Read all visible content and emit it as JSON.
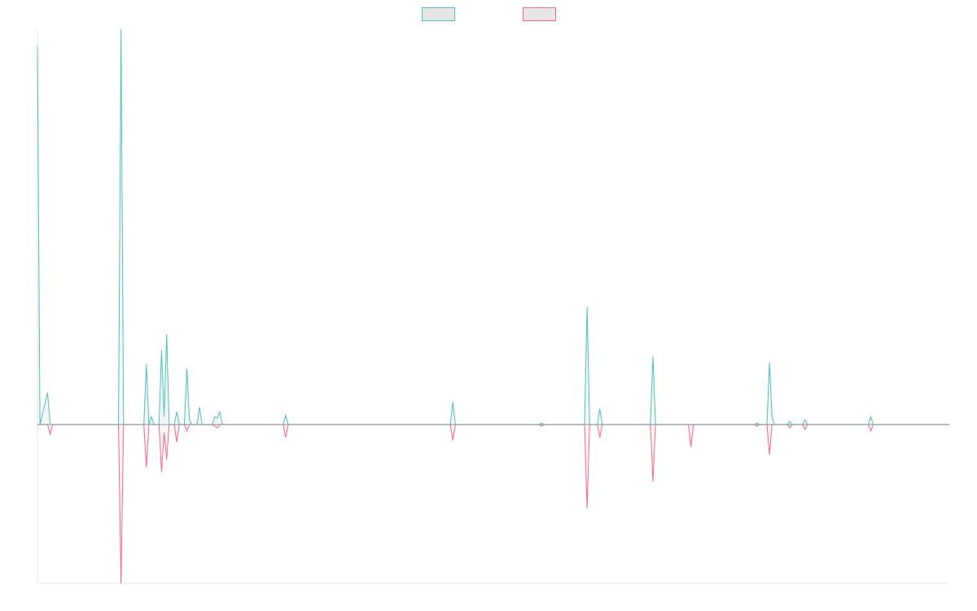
{
  "chart_data": {
    "type": "line",
    "title": "",
    "xlabel": "",
    "ylabel": "",
    "grid": false,
    "legend": "top-center",
    "baseline": 0,
    "ylim": [
      -1.0,
      2.49
    ],
    "xlim": [
      0,
      360
    ],
    "series": [
      {
        "name": "",
        "color": "#4bc0c0",
        "fill": "#e6e6e6",
        "points": [
          [
            0,
            2.38
          ],
          [
            1,
            0
          ],
          [
            4,
            0.2
          ],
          [
            5,
            0
          ],
          [
            32,
            0
          ],
          [
            33,
            2.49
          ],
          [
            34,
            0
          ],
          [
            42,
            0
          ],
          [
            43,
            0.38
          ],
          [
            44,
            0
          ],
          [
            45,
            0.05
          ],
          [
            46,
            0
          ],
          [
            48,
            0
          ],
          [
            49,
            0.47
          ],
          [
            50,
            0.05
          ],
          [
            51,
            0.57
          ],
          [
            52,
            0
          ],
          [
            54,
            0
          ],
          [
            55,
            0.08
          ],
          [
            56,
            0
          ],
          [
            58,
            0
          ],
          [
            59,
            0.35
          ],
          [
            60,
            0.03
          ],
          [
            61,
            0
          ],
          [
            63,
            0
          ],
          [
            64,
            0.11
          ],
          [
            65,
            0
          ],
          [
            69,
            0
          ],
          [
            70,
            0.05
          ],
          [
            71,
            0.04
          ],
          [
            72,
            0.08
          ],
          [
            73,
            0
          ],
          [
            97,
            0
          ],
          [
            98,
            0.06
          ],
          [
            99,
            0
          ],
          [
            163,
            0
          ],
          [
            164,
            0.14
          ],
          [
            165,
            0
          ],
          [
            198,
            0
          ],
          [
            199,
            0.01
          ],
          [
            200,
            0
          ],
          [
            216,
            0
          ],
          [
            217,
            0.74
          ],
          [
            218,
            0
          ],
          [
            221,
            0
          ],
          [
            222,
            0.1
          ],
          [
            223,
            0
          ],
          [
            242,
            0
          ],
          [
            243,
            0.43
          ],
          [
            244,
            0
          ],
          [
            245,
            0
          ],
          [
            246,
            0
          ],
          [
            247,
            0
          ],
          [
            257,
            0
          ],
          [
            258,
            0
          ],
          [
            259,
            0
          ],
          [
            283,
            0
          ],
          [
            284,
            0.01
          ],
          [
            285,
            0
          ],
          [
            288,
            0
          ],
          [
            289,
            0.39
          ],
          [
            290,
            0.05
          ],
          [
            291,
            0
          ],
          [
            296,
            0
          ],
          [
            297,
            0.02
          ],
          [
            298,
            0
          ],
          [
            302,
            0
          ],
          [
            303,
            0.03
          ],
          [
            304,
            0
          ],
          [
            328,
            0
          ],
          [
            329,
            0.05
          ],
          [
            330,
            0
          ],
          [
            360,
            0
          ]
        ]
      },
      {
        "name": "",
        "color": "#ff6384",
        "fill": "#e6e6e6",
        "points": [
          [
            0,
            0
          ],
          [
            4,
            0
          ],
          [
            5,
            -0.06
          ],
          [
            6,
            0
          ],
          [
            32,
            0
          ],
          [
            33,
            -1.0
          ],
          [
            34,
            0
          ],
          [
            42,
            0
          ],
          [
            43,
            -0.27
          ],
          [
            44,
            0
          ],
          [
            48,
            0
          ],
          [
            49,
            -0.3
          ],
          [
            50,
            -0.05
          ],
          [
            51,
            -0.22
          ],
          [
            52,
            0
          ],
          [
            54,
            0
          ],
          [
            55,
            -0.11
          ],
          [
            56,
            0
          ],
          [
            58,
            0
          ],
          [
            59,
            -0.04
          ],
          [
            60,
            0
          ],
          [
            69,
            0
          ],
          [
            70,
            -0.01
          ],
          [
            71,
            -0.02
          ],
          [
            72,
            0
          ],
          [
            97,
            0
          ],
          [
            98,
            -0.08
          ],
          [
            99,
            0
          ],
          [
            163,
            0
          ],
          [
            164,
            -0.1
          ],
          [
            165,
            0
          ],
          [
            198,
            0
          ],
          [
            199,
            -0.01
          ],
          [
            200,
            0
          ],
          [
            216,
            0
          ],
          [
            217,
            -0.53
          ],
          [
            218,
            0
          ],
          [
            221,
            0
          ],
          [
            222,
            -0.08
          ],
          [
            223,
            0
          ],
          [
            242,
            0
          ],
          [
            243,
            -0.36
          ],
          [
            244,
            0
          ],
          [
            257,
            0
          ],
          [
            258,
            -0.14
          ],
          [
            259,
            0
          ],
          [
            283,
            0
          ],
          [
            284,
            -0.01
          ],
          [
            285,
            0
          ],
          [
            288,
            0
          ],
          [
            289,
            -0.19
          ],
          [
            290,
            0
          ],
          [
            296,
            0
          ],
          [
            297,
            -0.02
          ],
          [
            298,
            0
          ],
          [
            302,
            0
          ],
          [
            303,
            -0.03
          ],
          [
            304,
            0
          ],
          [
            328,
            0
          ],
          [
            329,
            -0.04
          ],
          [
            330,
            0
          ],
          [
            360,
            0
          ]
        ]
      }
    ]
  }
}
